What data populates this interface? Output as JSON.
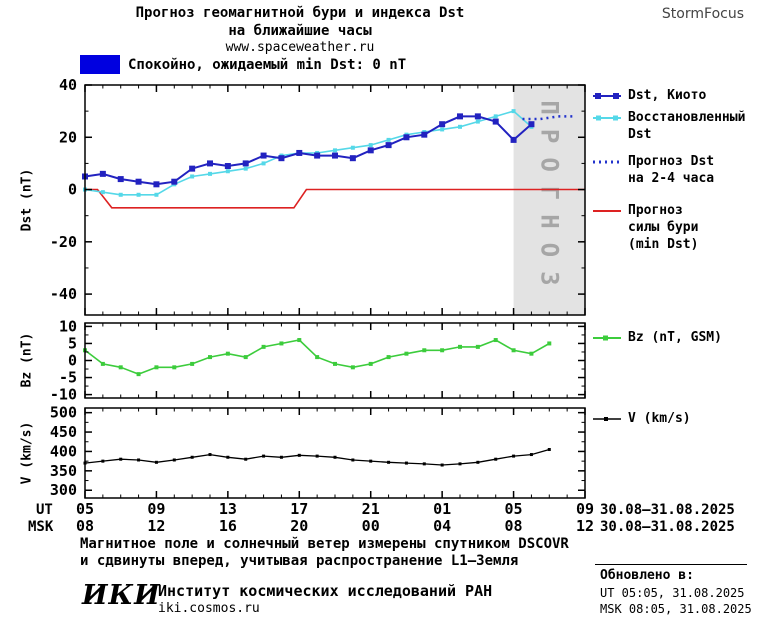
{
  "header": {
    "title_line1": "Прогноз геомагнитной бури и индекса Dst",
    "title_line2": "на ближайшие часы",
    "website": "www.spaceweather.ru",
    "brand": "StormFocus"
  },
  "status": {
    "color": "#0000e0",
    "text": "Спокойно, ожидаемый min Dst: 0 nT"
  },
  "legend": {
    "dst_kyoto": "Dst, Киото",
    "reconstructed_1": "Восстановленный",
    "reconstructed_2": "Dst",
    "forecast_1": "Прогноз Dst",
    "forecast_2": "на 2-4 часа",
    "storm_1": "Прогноз",
    "storm_2": "силы бури",
    "storm_3": "(min Dst)",
    "bz": "Bz (nT, GSM)",
    "v": "V (km/s)"
  },
  "xaxis": {
    "ut_label": "UT",
    "msk_label": "MSK",
    "tick_hours": [
      5,
      9,
      13,
      17,
      21,
      25,
      29,
      33
    ],
    "ut_ticks": [
      "05",
      "09",
      "13",
      "17",
      "21",
      "01",
      "05",
      "09"
    ],
    "msk_ticks": [
      "08",
      "12",
      "16",
      "20",
      "00",
      "04",
      "08",
      "12"
    ],
    "ut_daterange": "30.08–31.08.2025",
    "msk_daterange": "30.08–31.08.2025"
  },
  "footer": {
    "note_line1": "Магнитное поле и солнечный ветер измерены спутником DSCOVR",
    "note_line2": "и сдвинуты вперед, учитывая распространение L1—Земля",
    "logo": "ИКИ",
    "institute": "Институт космических исследований РАН",
    "institute_site": "iki.cosmos.ru",
    "updated_label": "Обновлено в:",
    "updated_ut": "UT  05:05, 31.08.2025",
    "updated_msk": "MSK 08:05, 31.08.2025"
  },
  "chart_data": [
    {
      "type": "line",
      "title": "Прогноз геомагнитной бури и индекса Dst на ближайшие часы",
      "ylabel": "Dst (nT)",
      "ylim": [
        -48,
        40
      ],
      "yticks": [
        40,
        20,
        0,
        -20,
        -40
      ],
      "yminor": 10,
      "xlim": [
        5,
        33
      ],
      "grid": false,
      "legend_position": "right",
      "forecast_region": {
        "start_hour": 29,
        "label": "ПРОГНОЗ",
        "fill": "#e3e3e3",
        "text_color": "#a6a6a6"
      },
      "series": [
        {
          "id": "storm-forecast",
          "name": "Прогноз силы бури (min Dst)",
          "color": "#dd2222",
          "width": 1.6,
          "x": [
            5,
            5.7,
            6.5,
            16.7,
            17.4,
            33
          ],
          "values": [
            0,
            0,
            -7,
            -7,
            0,
            0
          ]
        },
        {
          "id": "dst-reconstructed",
          "name": "Восстановленный Dst",
          "color": "#55d8e8",
          "width": 1.6,
          "marker_size": 4,
          "x": [
            5,
            6,
            7,
            8,
            9,
            10,
            11,
            12,
            13,
            14,
            15,
            16,
            17,
            18,
            19,
            20,
            21,
            22,
            23,
            24,
            25,
            26,
            27,
            28,
            29,
            30
          ],
          "values": [
            0,
            -1,
            -2,
            -2,
            -2,
            2,
            5,
            6,
            7,
            8,
            10,
            13,
            14,
            14,
            15,
            16,
            17,
            19,
            21,
            22,
            23,
            24,
            26,
            28,
            30,
            24
          ]
        },
        {
          "id": "dst-kyoto",
          "name": "Dst, Киото",
          "color": "#2222c0",
          "width": 2,
          "marker_size": 6,
          "x": [
            5,
            6,
            7,
            8,
            9,
            10,
            11,
            12,
            13,
            14,
            15,
            16,
            17,
            18,
            19,
            20,
            21,
            22,
            23,
            24,
            25,
            26,
            27,
            28,
            29,
            30
          ],
          "values": [
            5,
            6,
            4,
            3,
            2,
            3,
            8,
            10,
            9,
            10,
            13,
            12,
            14,
            13,
            13,
            12,
            15,
            17,
            20,
            21,
            25,
            28,
            28,
            26,
            19,
            25
          ]
        },
        {
          "id": "dst-forecast",
          "name": "Прогноз Dst на 2-4 часа",
          "color": "#2233cc",
          "width": 2.5,
          "dash": "2,4",
          "x": [
            29.5,
            30.5,
            31.5,
            32.5
          ],
          "values": [
            27,
            27,
            28,
            28
          ]
        }
      ]
    },
    {
      "type": "line",
      "ylabel": "Bz (nT)",
      "ylim": [
        -11,
        11
      ],
      "yticks": [
        10,
        5,
        0,
        -5,
        -10
      ],
      "yminor": 2.5,
      "xlim": [
        5,
        33
      ],
      "series": [
        {
          "id": "bz",
          "name": "Bz (nT, GSM)",
          "color": "#3ccc3c",
          "width": 1.6,
          "marker_size": 4,
          "x": [
            5,
            6,
            7,
            8,
            9,
            10,
            11,
            12,
            13,
            14,
            15,
            16,
            17,
            18,
            19,
            20,
            21,
            22,
            23,
            24,
            25,
            26,
            27,
            28,
            29,
            30,
            31
          ],
          "values": [
            3,
            -1,
            -2,
            -4,
            -2,
            -2,
            -1,
            1,
            2,
            1,
            4,
            5,
            6,
            1,
            -1,
            -2,
            -1,
            1,
            2,
            3,
            3,
            4,
            4,
            6,
            3,
            2,
            5
          ]
        }
      ]
    },
    {
      "type": "line",
      "ylabel": "V (km/s)",
      "ylim": [
        280,
        512
      ],
      "yticks": [
        500,
        450,
        400,
        350,
        300
      ],
      "yminor": 25,
      "xlim": [
        5,
        33
      ],
      "series": [
        {
          "id": "v",
          "name": "V (km/s)",
          "color": "#000000",
          "width": 1.3,
          "marker_size": 3,
          "x": [
            5,
            6,
            7,
            8,
            9,
            10,
            11,
            12,
            13,
            14,
            15,
            16,
            17,
            18,
            19,
            20,
            21,
            22,
            23,
            24,
            25,
            26,
            27,
            28,
            29,
            30,
            31
          ],
          "values": [
            370,
            375,
            380,
            378,
            372,
            378,
            385,
            392,
            385,
            380,
            388,
            385,
            390,
            388,
            385,
            378,
            375,
            372,
            370,
            368,
            365,
            368,
            372,
            380,
            388,
            392,
            405
          ]
        }
      ]
    }
  ]
}
